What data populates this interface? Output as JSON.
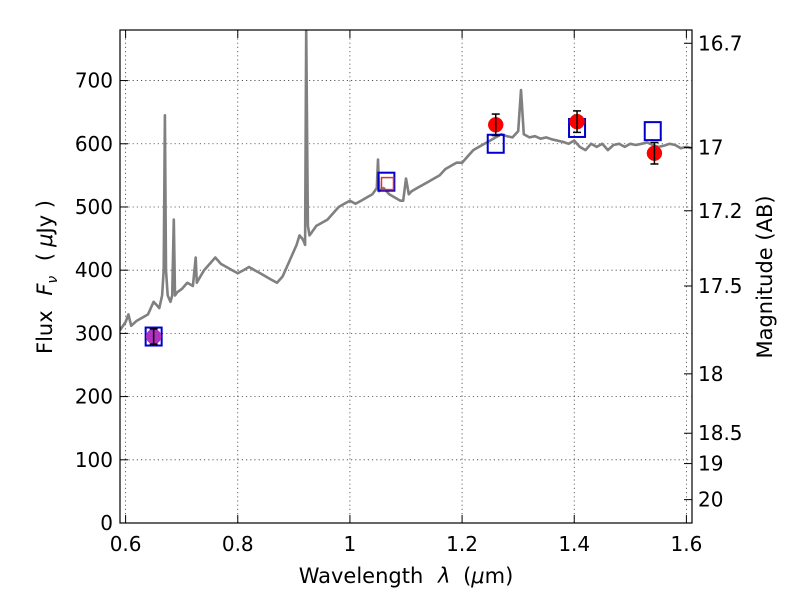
{
  "chart_data": {
    "type": "line",
    "xlabel_text": "Wavelength",
    "xlabel_symbol": "λ",
    "xlabel_unit_open": "(",
    "xlabel_unit_mu": "μ",
    "xlabel_unit_rest": "m)",
    "ylabel_text": "Flux",
    "ylabel_symbol": "F",
    "ylabel_subscript": "ν",
    "ylabel_unit_open": "(",
    "ylabel_unit_mu": "μ",
    "ylabel_unit_rest": "Jy )",
    "y2label": "Magnitude (AB)",
    "xlim": [
      0.59,
      1.61
    ],
    "ylim": [
      0,
      780
    ],
    "grid": true,
    "x_ticks": [
      {
        "value": 0.6,
        "label": "0.6"
      },
      {
        "value": 0.8,
        "label": "0.8"
      },
      {
        "value": 1.0,
        "label": "1"
      },
      {
        "value": 1.2,
        "label": "1.2"
      },
      {
        "value": 1.4,
        "label": "1.4"
      },
      {
        "value": 1.6,
        "label": "1.6"
      }
    ],
    "y_ticks": [
      {
        "value": 0,
        "label": "0"
      },
      {
        "value": 100,
        "label": "100"
      },
      {
        "value": 200,
        "label": "200"
      },
      {
        "value": 300,
        "label": "300"
      },
      {
        "value": 400,
        "label": "400"
      },
      {
        "value": 500,
        "label": "500"
      },
      {
        "value": 600,
        "label": "600"
      },
      {
        "value": 700,
        "label": "700"
      }
    ],
    "mag_ticks": [
      {
        "label": "16.7",
        "flux": 759
      },
      {
        "label": "17",
        "flux": 594
      },
      {
        "label": "17.2",
        "flux": 494
      },
      {
        "label": "17.5",
        "flux": 375
      },
      {
        "label": "18",
        "flux": 236
      },
      {
        "label": "18.5",
        "flux": 142
      },
      {
        "label": "19",
        "flux": 94
      },
      {
        "label": "20",
        "flux": 37
      }
    ],
    "series": [
      {
        "kind": "spectrum",
        "color": "#808080",
        "x": [
          0.59,
          0.6,
          0.605,
          0.61,
          0.62,
          0.63,
          0.64,
          0.645,
          0.65,
          0.655,
          0.66,
          0.665,
          0.668,
          0.67,
          0.672,
          0.675,
          0.68,
          0.683,
          0.686,
          0.688,
          0.692,
          0.7,
          0.71,
          0.72,
          0.725,
          0.727,
          0.73,
          0.74,
          0.75,
          0.76,
          0.77,
          0.78,
          0.79,
          0.8,
          0.81,
          0.82,
          0.83,
          0.84,
          0.85,
          0.86,
          0.87,
          0.88,
          0.89,
          0.895,
          0.9,
          0.905,
          0.91,
          0.915,
          0.918,
          0.92,
          0.922,
          0.925,
          0.928,
          0.932,
          0.94,
          0.95,
          0.96,
          0.97,
          0.98,
          0.99,
          1.0,
          1.01,
          1.02,
          1.03,
          1.04,
          1.048,
          1.05,
          1.052,
          1.06,
          1.07,
          1.08,
          1.09,
          1.095,
          1.1,
          1.105,
          1.11,
          1.12,
          1.13,
          1.14,
          1.15,
          1.16,
          1.17,
          1.18,
          1.19,
          1.2,
          1.21,
          1.22,
          1.23,
          1.24,
          1.25,
          1.26,
          1.27,
          1.28,
          1.29,
          1.3,
          1.305,
          1.31,
          1.32,
          1.33,
          1.34,
          1.35,
          1.36,
          1.37,
          1.38,
          1.39,
          1.4,
          1.41,
          1.42,
          1.43,
          1.44,
          1.45,
          1.46,
          1.47,
          1.48,
          1.49,
          1.5,
          1.51,
          1.52,
          1.53,
          1.54,
          1.55,
          1.56,
          1.57,
          1.58,
          1.59,
          1.6,
          1.61
        ],
        "y": [
          305,
          318,
          330,
          312,
          320,
          325,
          330,
          340,
          350,
          345,
          340,
          360,
          400,
          645,
          400,
          360,
          350,
          360,
          480,
          360,
          365,
          370,
          380,
          375,
          420,
          380,
          385,
          400,
          410,
          420,
          410,
          405,
          400,
          395,
          400,
          405,
          400,
          395,
          390,
          385,
          380,
          390,
          410,
          420,
          430,
          440,
          455,
          450,
          445,
          440,
          780,
          470,
          455,
          460,
          470,
          475,
          480,
          490,
          500,
          505,
          510,
          505,
          510,
          515,
          520,
          530,
          575,
          525,
          530,
          520,
          515,
          510,
          510,
          545,
          520,
          525,
          530,
          535,
          540,
          545,
          550,
          560,
          565,
          570,
          570,
          580,
          590,
          595,
          600,
          605,
          610,
          615,
          612,
          610,
          620,
          685,
          615,
          610,
          612,
          608,
          610,
          607,
          605,
          603,
          600,
          605,
          595,
          590,
          600,
          595,
          600,
          590,
          598,
          600,
          595,
          600,
          598,
          600,
          602,
          598,
          595,
          597,
          600,
          598,
          593,
          595,
          593
        ]
      },
      {
        "kind": "model-squares",
        "color": "#0000cc",
        "x": [
          0.65,
          1.065,
          1.26,
          1.405,
          1.54
        ],
        "y": [
          295,
          540,
          600,
          625,
          620
        ]
      },
      {
        "kind": "inner-square",
        "color": "#e03030",
        "x": [
          1.067
        ],
        "y": [
          537
        ]
      },
      {
        "kind": "observed-points",
        "color": "#ff0000",
        "x": [
          1.26,
          1.405,
          1.543
        ],
        "y": [
          630,
          635,
          585
        ],
        "yerr": [
          17,
          17,
          17
        ]
      },
      {
        "kind": "observed-point",
        "color": "#b030c0",
        "x": [
          0.65
        ],
        "y": [
          295
        ],
        "yerr": [
          12
        ]
      }
    ]
  }
}
